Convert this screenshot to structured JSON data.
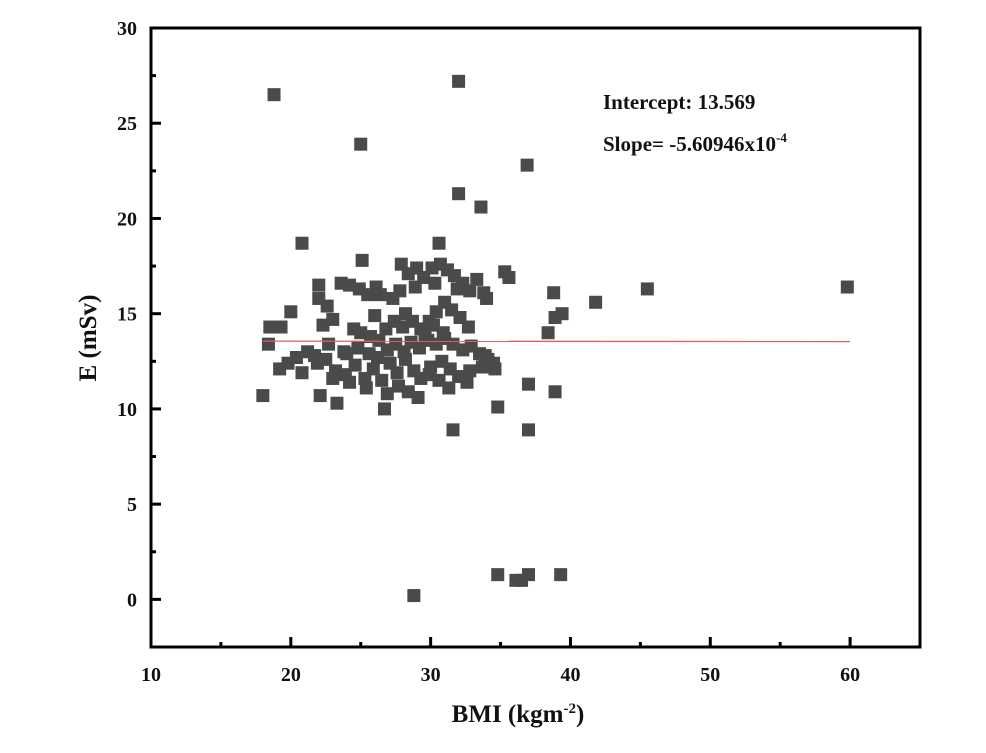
{
  "chart_data": {
    "type": "scatter",
    "title": "",
    "xlabel": "BMI (kgm",
    "xlabel_sup": "-2",
    "xlabel_end": ")",
    "ylabel": "E (mSv)",
    "xlim": [
      10,
      65
    ],
    "ylim": [
      -2.5,
      30
    ],
    "xticks": [
      10,
      20,
      30,
      40,
      50,
      60
    ],
    "yticks": [
      0,
      5,
      10,
      15,
      20,
      25,
      30
    ],
    "grid": false,
    "marker_color": "#4a4a4a",
    "fit_color": "#e06060",
    "annotations": {
      "intercept": "Intercept: 13.569",
      "slope": "Slope= -5.60946x10",
      "slope_sup": "-4"
    },
    "fit": {
      "intercept": 13.569,
      "slope": -0.000560946,
      "x_range": [
        18,
        60
      ]
    },
    "points": [
      [
        18.8,
        26.5
      ],
      [
        25.0,
        23.9
      ],
      [
        32.0,
        27.2
      ],
      [
        32.0,
        21.3
      ],
      [
        33.6,
        20.6
      ],
      [
        36.9,
        22.8
      ],
      [
        20.8,
        18.7
      ],
      [
        30.6,
        18.7
      ],
      [
        25.1,
        17.8
      ],
      [
        59.8,
        16.4
      ],
      [
        45.5,
        16.3
      ],
      [
        41.8,
        15.6
      ],
      [
        38.8,
        16.1
      ],
      [
        39.4,
        15.0
      ],
      [
        38.9,
        14.8
      ],
      [
        38.4,
        14.0
      ],
      [
        38.9,
        10.9
      ],
      [
        37.0,
        11.3
      ],
      [
        37.0,
        8.9
      ],
      [
        31.6,
        8.9
      ],
      [
        34.8,
        10.1
      ],
      [
        26.7,
        10.0
      ],
      [
        23.3,
        10.3
      ],
      [
        18.0,
        10.7
      ],
      [
        28.8,
        0.2
      ],
      [
        34.8,
        1.3
      ],
      [
        36.1,
        1.0
      ],
      [
        36.5,
        1.0
      ],
      [
        37.0,
        1.3
      ],
      [
        39.3,
        1.3
      ],
      [
        18.5,
        14.3
      ],
      [
        18.4,
        13.4
      ],
      [
        19.3,
        14.3
      ],
      [
        20.0,
        15.1
      ],
      [
        19.2,
        12.1
      ],
      [
        19.8,
        12.4
      ],
      [
        20.8,
        11.9
      ],
      [
        21.9,
        12.4
      ],
      [
        22.1,
        10.7
      ],
      [
        22.0,
        15.8
      ],
      [
        22.0,
        16.5
      ],
      [
        22.6,
        15.4
      ],
      [
        22.3,
        14.4
      ],
      [
        23.0,
        14.7
      ],
      [
        23.6,
        16.6
      ],
      [
        24.2,
        16.5
      ],
      [
        24.9,
        16.3
      ],
      [
        25.5,
        16.0
      ],
      [
        26.1,
        16.4
      ],
      [
        26.4,
        16.0
      ],
      [
        23.8,
        13.0
      ],
      [
        24.5,
        14.2
      ],
      [
        25.0,
        14.0
      ],
      [
        25.7,
        13.8
      ],
      [
        26.3,
        13.6
      ],
      [
        22.5,
        12.6
      ],
      [
        23.2,
        12.0
      ],
      [
        23.9,
        11.8
      ],
      [
        24.6,
        12.3
      ],
      [
        25.3,
        11.6
      ],
      [
        25.9,
        12.1
      ],
      [
        26.5,
        11.5
      ],
      [
        27.1,
        12.4
      ],
      [
        27.6,
        11.9
      ],
      [
        28.2,
        12.6
      ],
      [
        28.8,
        12.0
      ],
      [
        29.3,
        11.6
      ],
      [
        29.9,
        11.8
      ],
      [
        24.0,
        12.9
      ],
      [
        24.8,
        13.2
      ],
      [
        25.6,
        12.9
      ],
      [
        26.2,
        12.7
      ],
      [
        26.9,
        13.1
      ],
      [
        27.5,
        13.4
      ],
      [
        28.1,
        13.0
      ],
      [
        28.6,
        13.5
      ],
      [
        29.2,
        13.2
      ],
      [
        29.8,
        13.6
      ],
      [
        30.4,
        13.4
      ],
      [
        31.0,
        13.7
      ],
      [
        31.6,
        13.4
      ],
      [
        32.3,
        13.1
      ],
      [
        32.9,
        13.3
      ],
      [
        33.5,
        12.9
      ],
      [
        34.1,
        12.6
      ],
      [
        34.6,
        12.1
      ],
      [
        33.7,
        12.2
      ],
      [
        32.8,
        12.0
      ],
      [
        32.0,
        11.7
      ],
      [
        31.3,
        11.1
      ],
      [
        30.6,
        11.5
      ],
      [
        29.1,
        10.6
      ],
      [
        28.4,
        10.9
      ],
      [
        27.7,
        11.2
      ],
      [
        26.9,
        10.8
      ],
      [
        25.4,
        11.1
      ],
      [
        24.2,
        11.4
      ],
      [
        23.0,
        11.6
      ],
      [
        27.9,
        17.6
      ],
      [
        28.4,
        17.1
      ],
      [
        28.9,
        16.4
      ],
      [
        29.5,
        16.9
      ],
      [
        30.1,
        17.4
      ],
      [
        30.7,
        17.6
      ],
      [
        31.2,
        17.3
      ],
      [
        31.7,
        17.0
      ],
      [
        32.3,
        16.6
      ],
      [
        32.8,
        16.2
      ],
      [
        33.3,
        16.8
      ],
      [
        33.8,
        16.1
      ],
      [
        34.0,
        15.8
      ],
      [
        35.3,
        17.2
      ],
      [
        35.6,
        16.9
      ],
      [
        28.2,
        15.0
      ],
      [
        28.7,
        14.6
      ],
      [
        29.3,
        14.2
      ],
      [
        29.9,
        14.6
      ],
      [
        30.4,
        15.1
      ],
      [
        31.0,
        15.6
      ],
      [
        31.5,
        15.2
      ],
      [
        32.1,
        14.8
      ],
      [
        32.7,
        14.3
      ],
      [
        30.9,
        14.0
      ],
      [
        30.2,
        14.4
      ],
      [
        29.6,
        13.9
      ],
      [
        28.0,
        14.3
      ],
      [
        27.4,
        14.6
      ],
      [
        26.8,
        14.2
      ],
      [
        33.9,
        12.8
      ],
      [
        34.5,
        12.4
      ],
      [
        30.0,
        12.2
      ],
      [
        30.8,
        12.5
      ],
      [
        31.4,
        12.1
      ],
      [
        32.6,
        11.4
      ],
      [
        21.2,
        13.0
      ],
      [
        21.7,
        12.8
      ],
      [
        20.4,
        12.7
      ],
      [
        22.7,
        13.4
      ],
      [
        27.3,
        15.8
      ],
      [
        27.8,
        16.2
      ],
      [
        31.9,
        16.3
      ],
      [
        30.3,
        16.6
      ],
      [
        29.0,
        17.4
      ],
      [
        26.0,
        14.9
      ]
    ]
  }
}
